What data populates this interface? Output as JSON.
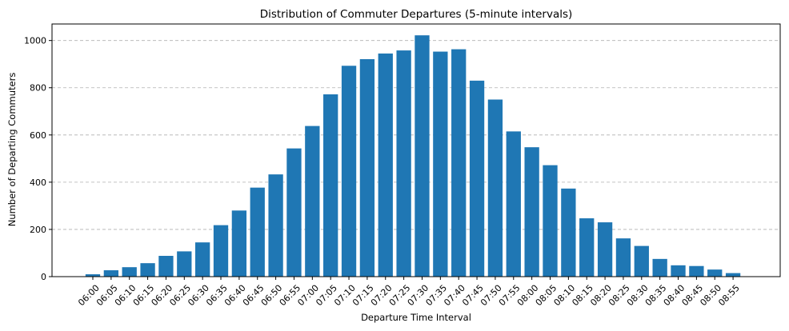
{
  "chart_data": {
    "type": "bar",
    "title": "Distribution of Commuter Departures (5-minute intervals)",
    "xlabel": "Departure Time Interval",
    "ylabel": "Number of Departing Commuters",
    "ylim": [
      0,
      1070
    ],
    "yticks": [
      0,
      200,
      400,
      600,
      800,
      1000
    ],
    "grid": "y, dashed",
    "bar_color": "#1f77b4",
    "categories": [
      "06:00",
      "06:05",
      "06:10",
      "06:15",
      "06:20",
      "06:25",
      "06:30",
      "06:35",
      "06:40",
      "06:45",
      "06:50",
      "06:55",
      "07:00",
      "07:05",
      "07:10",
      "07:15",
      "07:20",
      "07:25",
      "07:30",
      "07:35",
      "07:40",
      "07:45",
      "07:50",
      "07:55",
      "08:00",
      "08:05",
      "08:10",
      "08:15",
      "08:20",
      "08:25",
      "08:30",
      "08:35",
      "08:40",
      "08:45",
      "08:50",
      "08:55"
    ],
    "values": [
      10,
      27,
      40,
      57,
      88,
      107,
      145,
      218,
      280,
      377,
      433,
      543,
      638,
      772,
      893,
      921,
      945,
      958,
      1022,
      953,
      963,
      830,
      750,
      615,
      548,
      472,
      373,
      247,
      230,
      162,
      130,
      75,
      48,
      45,
      30,
      15
    ]
  }
}
